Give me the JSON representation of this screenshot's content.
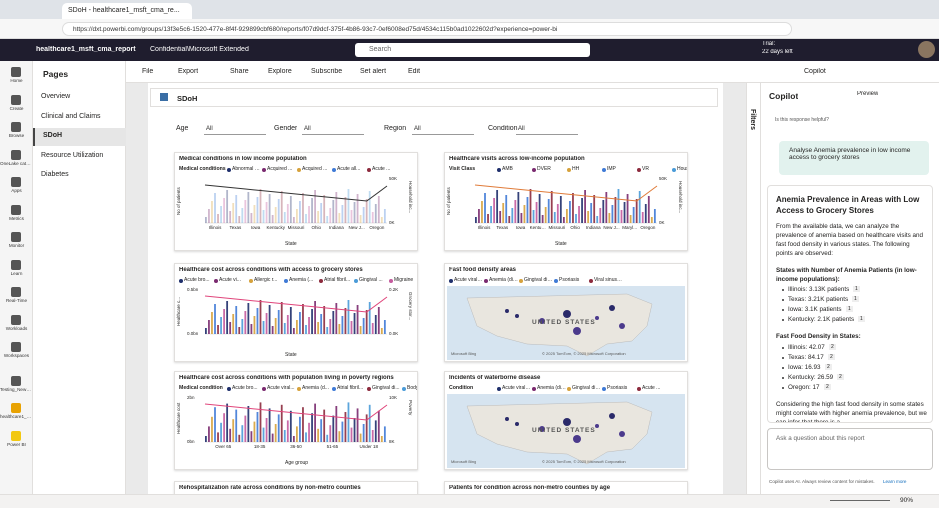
{
  "browser": {
    "tab": "SDoH - healthcare1_msft_cma_re...",
    "url": "https://dxt.powerbi.com/groups/13f3e5c6-1520-477e-8f4f-929899cbf680/reports/f07d9dcf-375f-4b86-93c7-0ef6008ed75d/4534c115b0ad1022602d?experience=power-bi"
  },
  "header": {
    "app": "healthcare1_msft_cma_report",
    "label": "Confidential\\Microsoft Extended",
    "search": "Search",
    "trial": "Trial:",
    "trial_days": "22 days left"
  },
  "rail": [
    "Home",
    "Create",
    "Browse",
    "OneLake catalog",
    "Apps",
    "Metrics",
    "Monitor",
    "Learn",
    "Real-Time",
    "Workloads",
    "Workspaces",
    "Testing_New_Sample_D...",
    "healthcare1_msft_cma...",
    "Power BI"
  ],
  "pages": {
    "title": "Pages",
    "items": [
      "Overview",
      "Clinical and Claims",
      "SDoH",
      "Resource Utilization",
      "Diabetes"
    ]
  },
  "toolbar": [
    "File",
    "Export",
    "Share",
    "Explore",
    "Subscribe",
    "Set alert",
    "Edit"
  ],
  "copilot_button": "Copilot",
  "report": {
    "banner": "SDoH",
    "slicers": [
      {
        "label": "Age",
        "value": "All"
      },
      {
        "label": "Gender",
        "value": "All"
      },
      {
        "label": "Region",
        "value": "All"
      },
      {
        "label": "Condition",
        "value": "All"
      }
    ]
  },
  "visuals": [
    {
      "title": "Medical conditions in low income population",
      "legend_title": "Medical conditions",
      "legend": [
        "Abnormal fi...",
        "Acquired ...",
        "Acquired ...",
        "Acute all...",
        "Acute ..."
      ],
      "y_label": "No of patients",
      "y2_label": "Household inc...",
      "y2_ticks": [
        "50K",
        "0K"
      ],
      "x_label": "State",
      "categories": [
        "Illinois",
        "Texas",
        "Iowa",
        "Kentucky",
        "Missouri",
        "Ohio",
        "Indiana",
        "New J...",
        "Oregon"
      ]
    },
    {
      "title": "Healthcare visits across low-income population",
      "legend_title": "Visit Class",
      "legend": [
        "AMB",
        "DVER",
        "HH",
        "IMP",
        "VR",
        "Household income"
      ],
      "y_label": "No of patients",
      "y2_label": "Household inc...",
      "y2_ticks": [
        "50K",
        "0K"
      ],
      "x_label": "State",
      "categories": [
        "Illinois",
        "Texas",
        "Iowa",
        "Kentucky",
        "Missouri",
        "Ohio",
        "Indiana",
        "New J...",
        "Maryl...",
        "Oregon"
      ]
    },
    {
      "title": "Healthcare cost across conditions with access to grocery stores",
      "legend": [
        "Acute bro...",
        "Acute vi...",
        "Allergic r...",
        "Anemia (...",
        "Atrial fibril...",
        "Gingival ...",
        "Migraine"
      ],
      "y_label": "Healthcare c...",
      "y_ticks": [
        "0.5bn",
        "0.0bn"
      ],
      "y2_label": "Grocery stor...",
      "y2_ticks": [
        "0.2K",
        "0.0K"
      ],
      "x_label": "State"
    },
    {
      "title": "Fast food density areas",
      "legend": [
        "Acute viral phary...",
        "Anemia (disorder)",
        "Gingival disea...",
        "Psoriasis",
        "Viral sinusiti..."
      ],
      "map": "UNITED STATES",
      "credit": "© 2025 TomTom, © 2025 Microsoft Corporation",
      "bing": "Microsoft Bing"
    },
    {
      "title": "Healthcare cost across conditions with population living in poverty regions",
      "legend_title": "Medical condition",
      "legend": [
        "Acute bro...",
        "Acute viral...",
        "Anemia (d...",
        "Atrial fibril...",
        "Gingival di...",
        "Body ma..."
      ],
      "y_label": "Healthcare cost",
      "y_ticks": [
        "2bn",
        "0bn"
      ],
      "y2_label": "Poverty",
      "y2_ticks": [
        "10K",
        "8K"
      ],
      "x_label": "Age group",
      "categories": [
        "Over 65",
        "18-35",
        "36-50",
        "51-65",
        "Under 18"
      ]
    },
    {
      "title": "Incidents of waterborne disease",
      "legend_title": "Condition",
      "legend": [
        "Acute viral ph...",
        "Anemia (dis...",
        "Gingival dis...",
        "Psoriasis",
        "Acute ..."
      ],
      "map": "UNITED STATES",
      "credit": "© 2025 TomTom, © 2025 Microsoft Corporation",
      "bing": "Microsoft Bing"
    },
    {
      "title": "Rehospitalization rate across conditions by non-metro counties"
    },
    {
      "title": "Patients for condition across non-metro counties by age"
    }
  ],
  "filters_pane": "Filters",
  "copilot": {
    "title": "Copilot",
    "preview": "Preview",
    "feedback": "Is this response helpful?",
    "prompt": "Analyse Anemia prevalence in low income access to grocery stores",
    "heading": "Anemia Prevalence in Areas with Low Access to Grocery Stores",
    "intro": "From the available data, we can analyze the prevalence of anemia based on healthcare visits and fast food density in various states. The following points are observed:",
    "sections": [
      {
        "heading": "States with Number of Anemia Patients (in low-income populations):",
        "cite": "1",
        "items": [
          "Illinois: 3.13K patients",
          "Texas: 3.21K patients",
          "Iowa: 3.1K patients",
          "Kentucky: 2.1K patients"
        ]
      },
      {
        "heading": "Fast Food Density in States:",
        "cite": "2",
        "items": [
          "Illinois: 42.07",
          "Texas: 84.17",
          "Iowa: 16.93",
          "Kentucky: 26.59",
          "Oregon: 17"
        ]
      }
    ],
    "conclusion": "Considering the high fast food density in some states might correlate with higher anemia prevalence, but we can infer that there is a",
    "input": "Ask a question about this report",
    "disclaimer": "Copilot uses AI. Always review content for mistakes.",
    "learn": "Learn more"
  },
  "status": {
    "zoom": "90%"
  }
}
